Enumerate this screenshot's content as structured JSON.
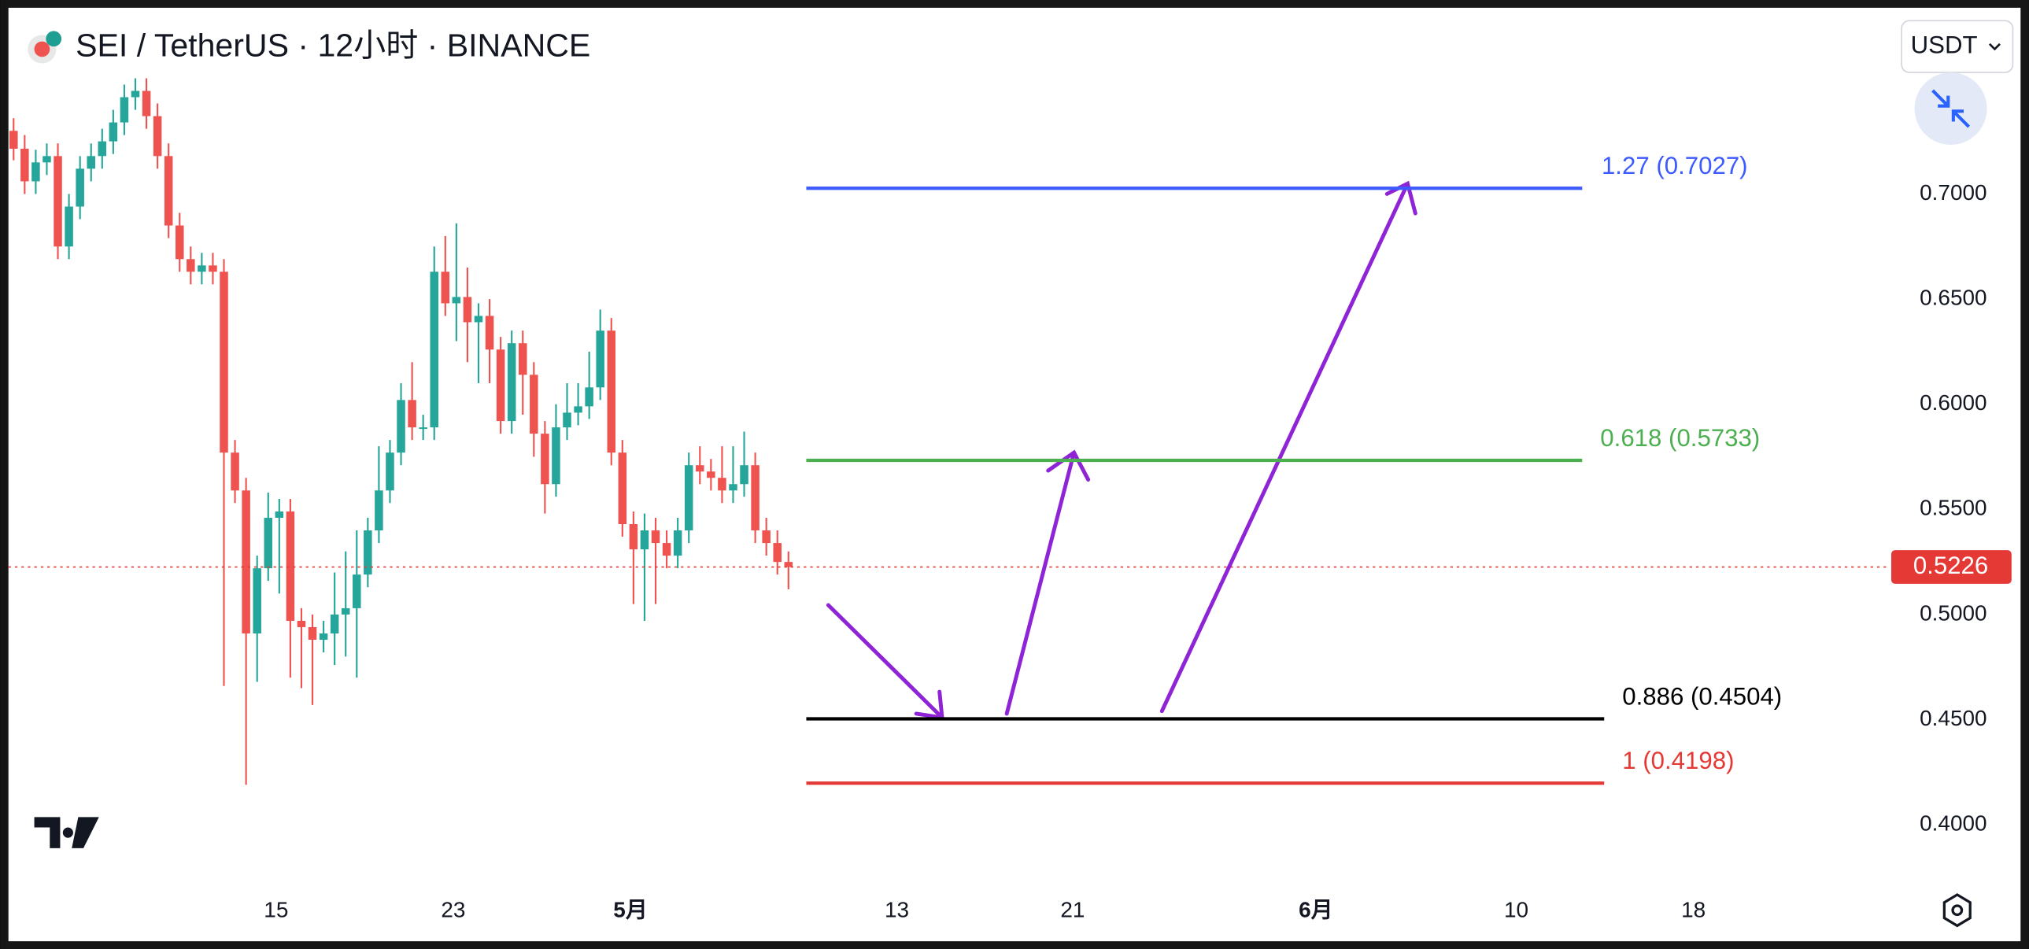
{
  "chart_data": {
    "type": "candlestick",
    "title": "SEI / TetherUS · 12小时 · BINANCE",
    "currency": "USDT",
    "up_color": "#26a69a",
    "down_color": "#ef5350",
    "open": [
      0.73,
      0.7215,
      0.706,
      0.715,
      0.718,
      0.675,
      0.694,
      0.712,
      0.718,
      0.725,
      0.734,
      0.746,
      0.749,
      0.737,
      0.718,
      0.685,
      0.669,
      0.663,
      0.666,
      0.663,
      0.577,
      0.559,
      0.491,
      0.522,
      0.546,
      0.549,
      0.497,
      0.494,
      0.488,
      0.491,
      0.5,
      0.503,
      0.519,
      0.54,
      0.559,
      0.577,
      0.602,
      0.589,
      0.589,
      0.663,
      0.648,
      0.651,
      0.639,
      0.642,
      0.626,
      0.592,
      0.629,
      0.614,
      0.586,
      0.562,
      0.589,
      0.596,
      0.599,
      0.608,
      0.635,
      0.577,
      0.543,
      0.531,
      0.54,
      0.534,
      0.528,
      0.54,
      0.571,
      0.568,
      0.565,
      0.559,
      0.562,
      0.571,
      0.54,
      0.534,
      0.525
    ],
    "high": [
      0.736,
      0.728,
      0.721,
      0.724,
      0.724,
      0.7,
      0.718,
      0.724,
      0.731,
      0.74,
      0.752,
      0.755,
      0.755,
      0.743,
      0.724,
      0.691,
      0.675,
      0.672,
      0.672,
      0.669,
      0.583,
      0.565,
      0.528,
      0.558,
      0.555,
      0.555,
      0.503,
      0.5,
      0.497,
      0.52,
      0.53,
      0.54,
      0.546,
      0.58,
      0.583,
      0.61,
      0.62,
      0.595,
      0.675,
      0.68,
      0.686,
      0.665,
      0.648,
      0.65,
      0.632,
      0.635,
      0.635,
      0.62,
      0.592,
      0.6,
      0.61,
      0.61,
      0.625,
      0.645,
      0.641,
      0.583,
      0.549,
      0.548,
      0.546,
      0.54,
      0.546,
      0.577,
      0.58,
      0.574,
      0.58,
      0.58,
      0.587,
      0.577,
      0.546,
      0.54,
      0.53
    ],
    "low": [
      0.716,
      0.7,
      0.7,
      0.709,
      0.669,
      0.669,
      0.688,
      0.706,
      0.712,
      0.719,
      0.728,
      0.74,
      0.731,
      0.712,
      0.679,
      0.663,
      0.657,
      0.657,
      0.657,
      0.466,
      0.553,
      0.419,
      0.468,
      0.516,
      0.51,
      0.47,
      0.465,
      0.457,
      0.482,
      0.476,
      0.48,
      0.47,
      0.513,
      0.534,
      0.553,
      0.571,
      0.583,
      0.583,
      0.583,
      0.642,
      0.63,
      0.62,
      0.61,
      0.61,
      0.586,
      0.586,
      0.595,
      0.575,
      0.548,
      0.556,
      0.583,
      0.59,
      0.593,
      0.602,
      0.571,
      0.537,
      0.505,
      0.497,
      0.505,
      0.522,
      0.522,
      0.534,
      0.562,
      0.559,
      0.553,
      0.553,
      0.556,
      0.534,
      0.528,
      0.519,
      0.512
    ],
    "close": [
      0.7215,
      0.706,
      0.715,
      0.718,
      0.675,
      0.694,
      0.712,
      0.718,
      0.725,
      0.734,
      0.746,
      0.749,
      0.737,
      0.718,
      0.685,
      0.669,
      0.663,
      0.666,
      0.663,
      0.577,
      0.559,
      0.491,
      0.522,
      0.546,
      0.549,
      0.497,
      0.494,
      0.488,
      0.491,
      0.5,
      0.503,
      0.519,
      0.54,
      0.559,
      0.577,
      0.602,
      0.589,
      0.589,
      0.663,
      0.648,
      0.651,
      0.639,
      0.642,
      0.626,
      0.592,
      0.629,
      0.614,
      0.586,
      0.562,
      0.589,
      0.596,
      0.599,
      0.608,
      0.635,
      0.577,
      0.543,
      0.531,
      0.54,
      0.534,
      0.528,
      0.54,
      0.571,
      0.568,
      0.565,
      0.559,
      0.562,
      0.571,
      0.54,
      0.534,
      0.525,
      0.5226
    ],
    "ylim": [
      0.368,
      0.7873
    ],
    "yticks": [
      {
        "value": 0.4,
        "label": "0.4000"
      },
      {
        "value": 0.45,
        "label": "0.4500"
      },
      {
        "value": 0.5,
        "label": "0.5000"
      },
      {
        "value": 0.55,
        "label": "0.5500"
      },
      {
        "value": 0.6,
        "label": "0.6000"
      },
      {
        "value": 0.65,
        "label": "0.6500"
      },
      {
        "value": 0.7,
        "label": "0.7000"
      }
    ],
    "xticks": [
      "15",
      "23",
      "5月",
      "13",
      "21",
      "6月",
      "10",
      "18"
    ],
    "last_price": 0.5226,
    "last_price_color": "#e53935",
    "levels": [
      {
        "label": "1.27 (0.7027)",
        "price": 0.7027,
        "color": "#3d5afe"
      },
      {
        "label": "0.618 (0.5733)",
        "price": 0.5733,
        "color": "#4caf50"
      },
      {
        "label": "0.886 (0.4504)",
        "price": 0.4504,
        "color": "#000000"
      },
      {
        "label": "1 (0.4198)",
        "price": 0.4198,
        "color": "#e53935"
      }
    ]
  }
}
